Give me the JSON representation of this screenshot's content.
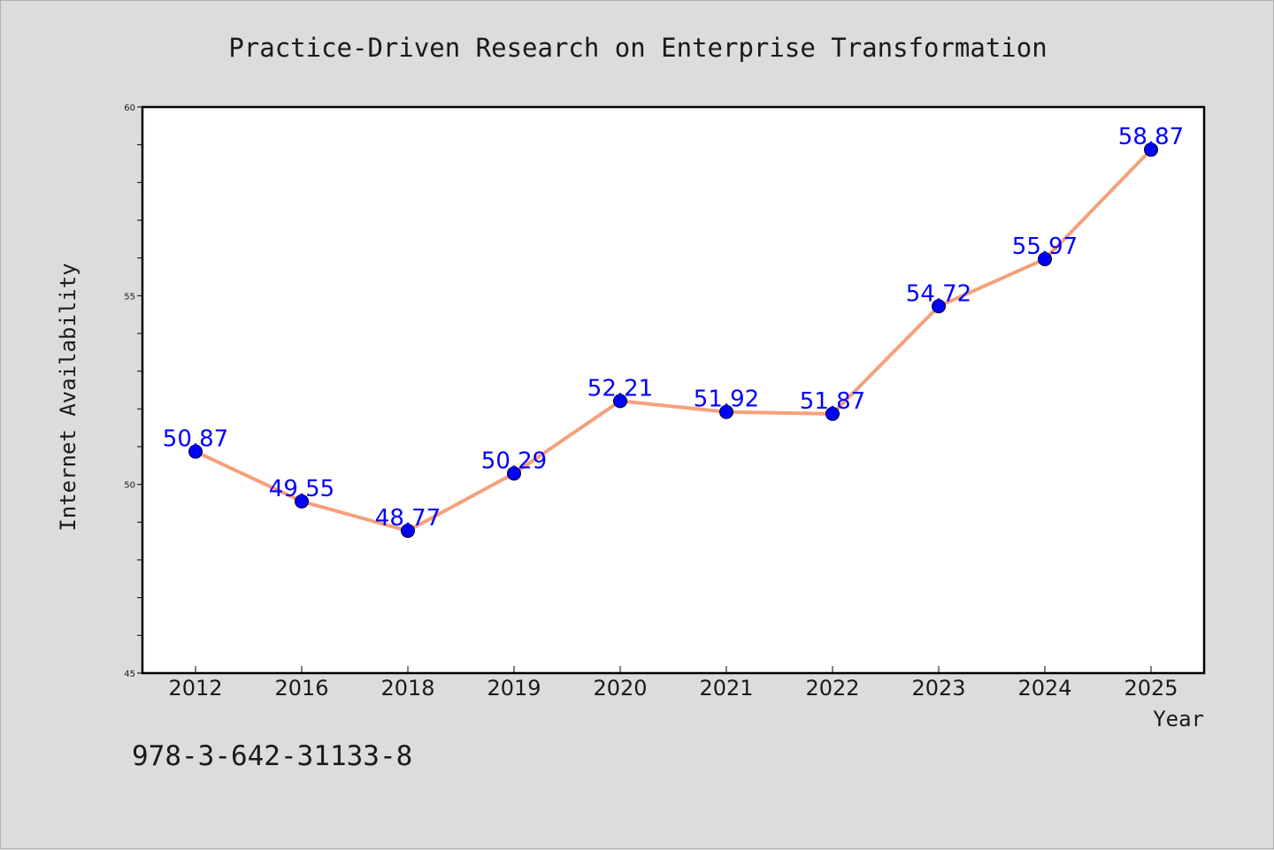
{
  "chart_data": {
    "type": "line",
    "title": "Practice-Driven Research on Enterprise Transformation",
    "xlabel": "Year",
    "ylabel": "Internet Availability",
    "categories": [
      "2012",
      "2016",
      "2018",
      "2019",
      "2020",
      "2021",
      "2022",
      "2023",
      "2024",
      "2025"
    ],
    "series": [
      {
        "values": [
          50.87,
          49.55,
          48.77,
          50.29,
          52.21,
          51.92,
          51.87,
          54.72,
          55.97,
          58.87
        ],
        "labels": [
          "50.87",
          "49.55",
          "48.77",
          "50.29",
          "52.21",
          "51.92",
          "51.87",
          "54.72",
          "55.97",
          "58.87"
        ],
        "line_color": "#f5a07a",
        "marker_color": "#0000ff"
      }
    ],
    "ylim": [
      45,
      60
    ],
    "yticks": [
      "45",
      "50",
      "55",
      "60"
    ],
    "grid": false,
    "legend": "none"
  },
  "footer_text": "978-3-642-31133-8"
}
